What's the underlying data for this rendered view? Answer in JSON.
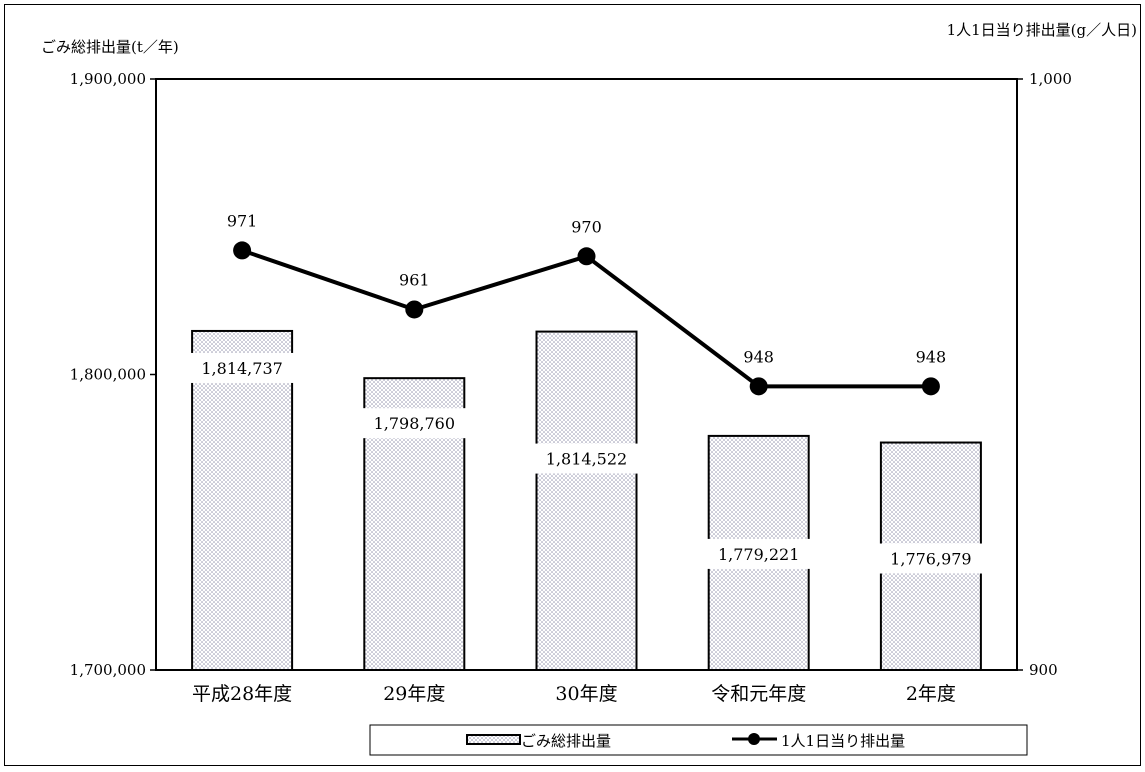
{
  "chart_data": {
    "type": "bar+line",
    "categories": [
      "平成28年度",
      "29年度",
      "30年度",
      "令和元年度",
      "2年度"
    ],
    "series": [
      {
        "name": "ごみ総排出量",
        "type": "bar",
        "axis": "left",
        "values": [
          1814737,
          1798760,
          1814522,
          1779221,
          1776979
        ],
        "labels": [
          "1,814,737",
          "1,798,760",
          "1,814,522",
          "1,779,221",
          "1,776,979"
        ],
        "pattern": "dotted"
      },
      {
        "name": "1人1日当り排出量",
        "type": "line",
        "axis": "right",
        "values": [
          971,
          961,
          970,
          948,
          948
        ],
        "labels": [
          "971",
          "961",
          "970",
          "948",
          "948"
        ]
      }
    ],
    "ylabel_left": "ごみ総排出量(t／年)",
    "ylabel_right": "1人1日当り排出量(g／人日)",
    "ylim_left": [
      1700000,
      1900000
    ],
    "ylim_right": [
      900,
      1000
    ],
    "yticks_left": [
      {
        "value": 1700000,
        "label": "1,700,000"
      },
      {
        "value": 1800000,
        "label": "1,800,000"
      },
      {
        "value": 1900000,
        "label": "1,900,000"
      }
    ],
    "yticks_right": [
      {
        "value": 900,
        "label": "900"
      },
      {
        "value": 1000,
        "label": "1,000"
      }
    ],
    "legend": {
      "placement": "bottom",
      "items": [
        "ごみ総排出量",
        "1人1日当り排出量"
      ]
    },
    "grid": false,
    "colors": {
      "bar_fill": "#ffffff",
      "bar_dots": "#8e8ea8",
      "line": "#000000",
      "outline": "#000000"
    }
  }
}
